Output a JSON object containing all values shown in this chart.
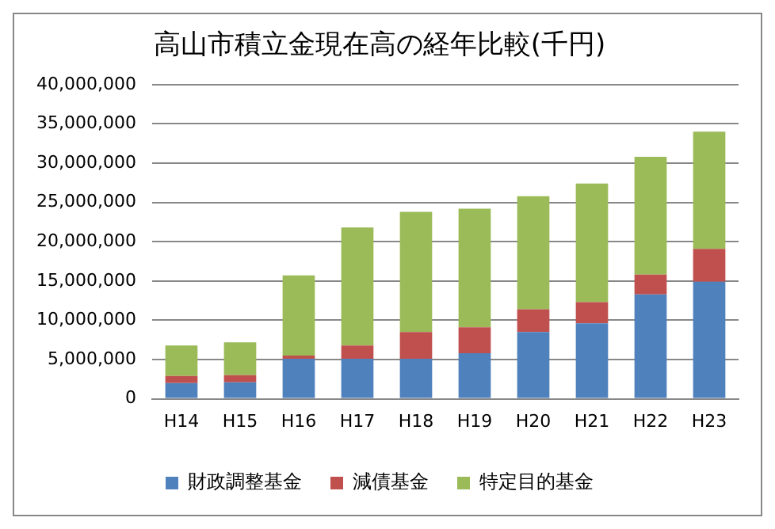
{
  "chart_data": {
    "type": "bar",
    "title": "高山市積立金現在高の経年比較(千円)",
    "stacked": true,
    "categories": [
      "H14",
      "H15",
      "H16",
      "H17",
      "H18",
      "H19",
      "H20",
      "H21",
      "H22",
      "H23"
    ],
    "series": [
      {
        "name": "財政調整基金",
        "color": "#4f81bd",
        "values": [
          2000000,
          2100000,
          5100000,
          5100000,
          5100000,
          5800000,
          8500000,
          9600000,
          13300000,
          14900000
        ]
      },
      {
        "name": "減債基金",
        "color": "#c0504d",
        "values": [
          900000,
          900000,
          400000,
          1700000,
          3400000,
          3300000,
          2900000,
          2700000,
          2500000,
          4200000
        ]
      },
      {
        "name": "特定目的基金",
        "color": "#9bbb59",
        "values": [
          3900000,
          4200000,
          10200000,
          15000000,
          15300000,
          15100000,
          14400000,
          15100000,
          15000000,
          14900000
        ]
      }
    ],
    "ylim": [
      0,
      40000000
    ],
    "yticks": [
      {
        "value": 0,
        "label": "0"
      },
      {
        "value": 5000000,
        "label": "5,000,000"
      },
      {
        "value": 10000000,
        "label": "10,000,000"
      },
      {
        "value": 15000000,
        "label": "15,000,000"
      },
      {
        "value": 20000000,
        "label": "20,000,000"
      },
      {
        "value": 25000000,
        "label": "25,000,000"
      },
      {
        "value": 30000000,
        "label": "30,000,000"
      },
      {
        "value": 35000000,
        "label": "35,000,000"
      },
      {
        "value": 40000000,
        "label": "40,000,000"
      }
    ],
    "grid": "y",
    "legend": "bottom"
  }
}
